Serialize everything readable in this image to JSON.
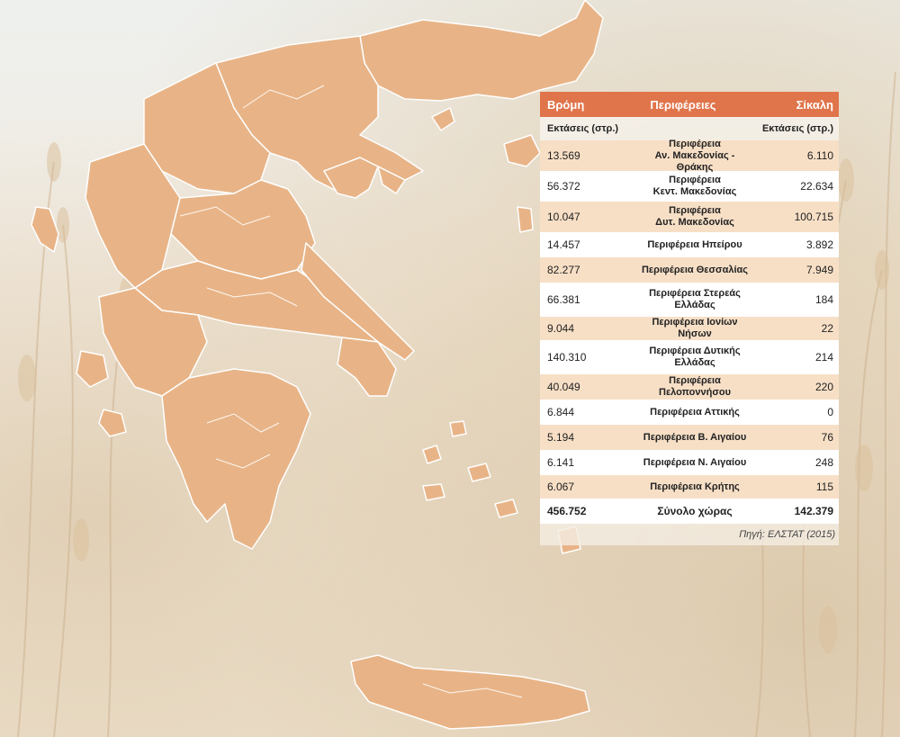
{
  "table": {
    "header": {
      "left": "Βρόμη",
      "center": "Περιφέρειες",
      "right": "Σίκαλη"
    },
    "subheader": {
      "left": "Εκτάσεις (στρ.)",
      "right": "Εκτάσεις (στρ.)"
    },
    "rows": [
      {
        "oats": "13.569",
        "region_line1": "Περιφέρεια",
        "region_line2": "Αν. Μακεδονίας - Θράκης",
        "rye": "6.110"
      },
      {
        "oats": "56.372",
        "region_line1": "Περιφέρεια",
        "region_line2": "Κεντ. Μακεδονίας",
        "rye": "22.634"
      },
      {
        "oats": "10.047",
        "region_line1": "Περιφέρεια",
        "region_line2": "Δυτ. Μακεδονίας",
        "rye": "100.715"
      },
      {
        "oats": "14.457",
        "region_line1": "Περιφέρεια Ηπείρου",
        "region_line2": "",
        "rye": "3.892"
      },
      {
        "oats": "82.277",
        "region_line1": "Περιφέρεια Θεσσαλίας",
        "region_line2": "",
        "rye": "7.949"
      },
      {
        "oats": "66.381",
        "region_line1": "Περιφέρεια Στερεάς",
        "region_line2": "Ελλάδας",
        "rye": "184"
      },
      {
        "oats": "9.044",
        "region_line1": "Περιφέρεια Ιονίων Νήσων",
        "region_line2": "",
        "rye": "22"
      },
      {
        "oats": "140.310",
        "region_line1": "Περιφέρεια Δυτικής",
        "region_line2": "Ελλάδας",
        "rye": "214"
      },
      {
        "oats": "40.049",
        "region_line1": "Περιφέρεια Πελοποννήσου",
        "region_line2": "",
        "rye": "220"
      },
      {
        "oats": "6.844",
        "region_line1": "Περιφέρεια Αττικής",
        "region_line2": "",
        "rye": "0"
      },
      {
        "oats": "5.194",
        "region_line1": "Περιφέρεια Β. Αιγαίου",
        "region_line2": "",
        "rye": "76"
      },
      {
        "oats": "6.141",
        "region_line1": "Περιφέρεια Ν. Αιγαίου",
        "region_line2": "",
        "rye": "248"
      },
      {
        "oats": "6.067",
        "region_line1": "Περιφέρεια Κρήτης",
        "region_line2": "",
        "rye": "115"
      }
    ],
    "total": {
      "oats": "456.752",
      "label": "Σύνολο χώρας",
      "rye": "142.379"
    },
    "source": "Πηγή: ΕΛΣΤΑΤ (2015)"
  },
  "colors": {
    "header_bg": "#e0744a",
    "row_alt_bg": "#f7dfc6",
    "map_fill": "#e8b487",
    "map_border": "#ffffff"
  },
  "icons": {
    "map": "greece-regions-map"
  }
}
